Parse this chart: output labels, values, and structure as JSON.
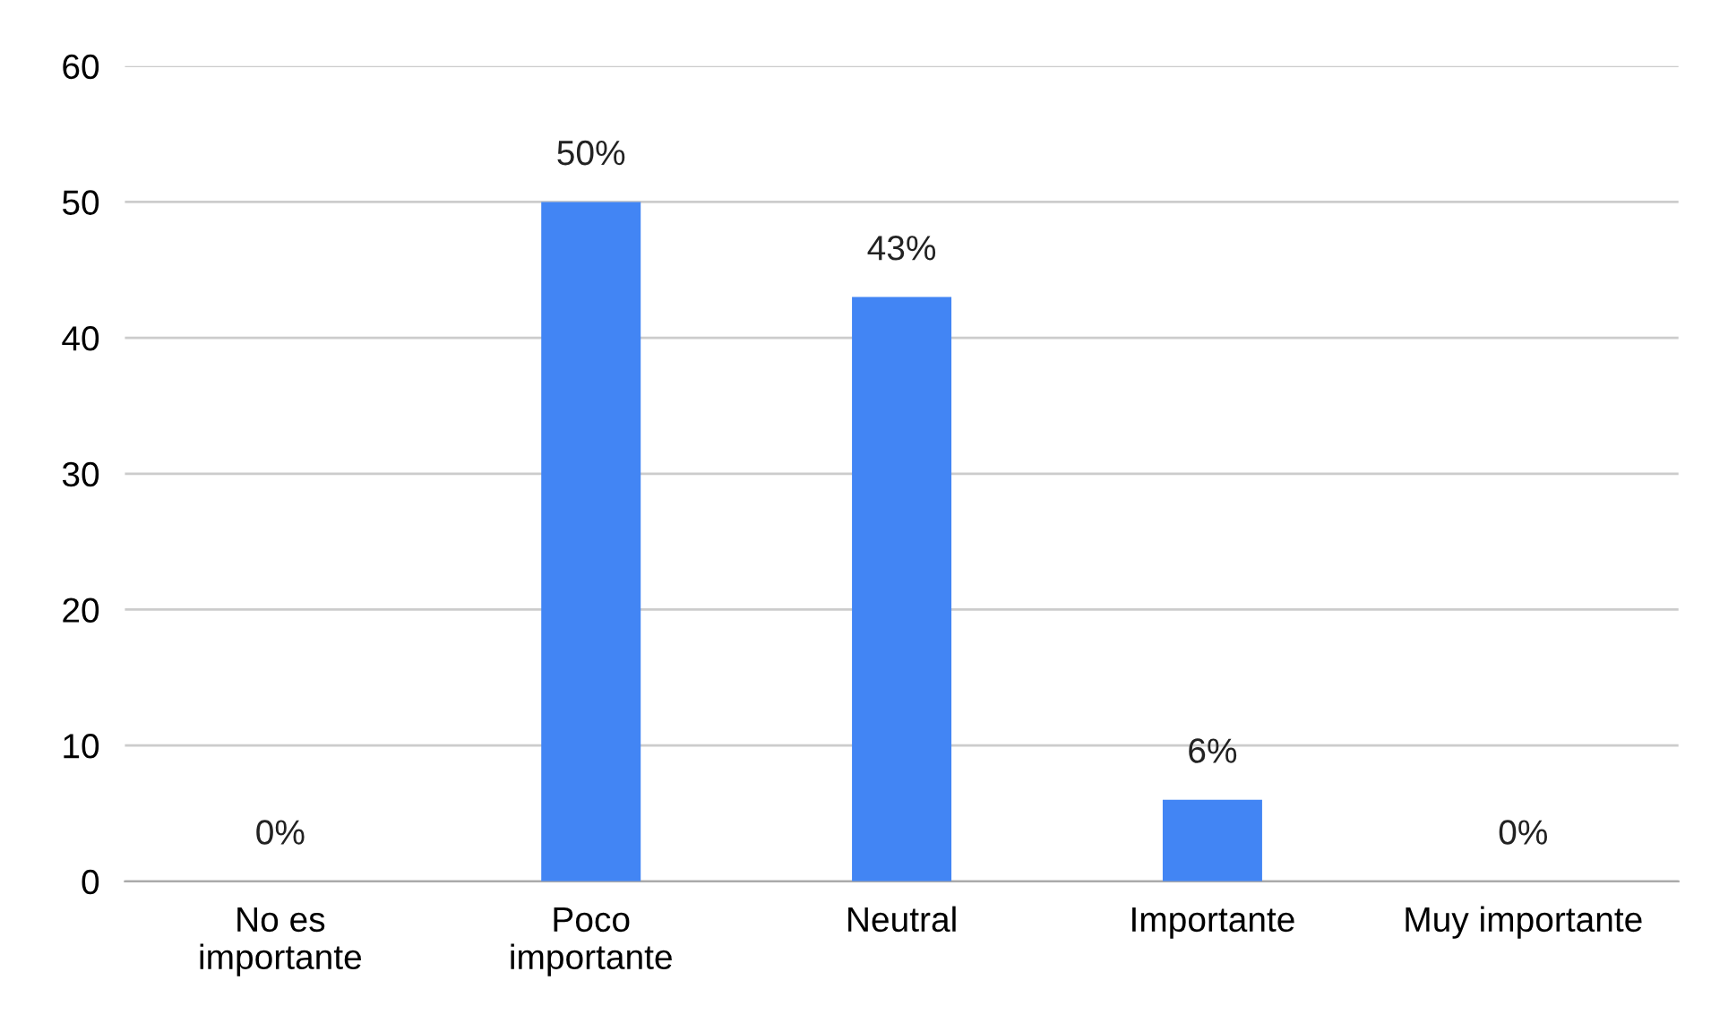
{
  "chart_data": {
    "type": "bar",
    "categories": [
      "No es\nimportante",
      "Poco\nimportante",
      "Neutral",
      "Importante",
      "Muy importante"
    ],
    "values": [
      0,
      50,
      43,
      6,
      0
    ],
    "value_labels": [
      "0%",
      "50%",
      "43%",
      "6%",
      "0%"
    ],
    "color": "#4285f4",
    "ylim": [
      0,
      60
    ],
    "yticks": [
      0,
      10,
      20,
      30,
      40,
      50,
      60
    ],
    "grid": "y",
    "legend": false
  }
}
